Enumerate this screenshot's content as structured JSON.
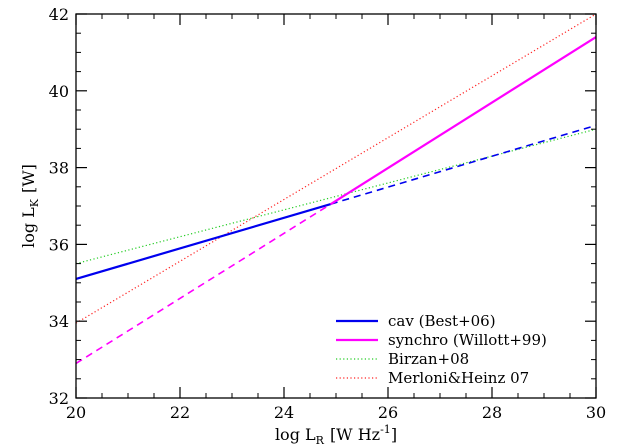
{
  "chart_data": {
    "type": "line",
    "xlabel": {
      "main": "log L",
      "sub": "R",
      "unit": "[W Hz",
      "exp": "-1",
      "close": "]"
    },
    "ylabel": {
      "main": "log L",
      "sub": "K",
      "unit": "[W]"
    },
    "xlim": [
      20,
      30
    ],
    "ylim": [
      32,
      42
    ],
    "x_ticks": [
      20,
      22,
      24,
      26,
      28,
      30
    ],
    "y_ticks": [
      32,
      34,
      36,
      38,
      40,
      42
    ],
    "x_tick_labels": [
      "20",
      "22",
      "24",
      "26",
      "28",
      "30"
    ],
    "y_tick_labels": [
      "32",
      "34",
      "36",
      "38",
      "40",
      "42"
    ],
    "grid": false,
    "legend_position": "bottom-right",
    "series": [
      {
        "name": "cav (Best+06)",
        "color": "#0000ee",
        "style": "solid-then-dashed",
        "solid": {
          "x": [
            20,
            24.9
          ],
          "y": [
            35.1,
            37.05
          ]
        },
        "dashed": {
          "x": [
            24.9,
            30
          ],
          "y": [
            37.05,
            39.1
          ]
        }
      },
      {
        "name": "synchro (Willott+99)",
        "color": "#ff00ff",
        "style": "dashed-then-solid",
        "dashed": {
          "x": [
            20,
            24.9
          ],
          "y": [
            32.9,
            37.05
          ]
        },
        "solid": {
          "x": [
            24.9,
            30
          ],
          "y": [
            37.05,
            41.4
          ]
        }
      },
      {
        "name": "Birzan+08",
        "color": "#22cc22",
        "style": "dotted",
        "line": {
          "x": [
            20,
            30
          ],
          "y": [
            35.5,
            39.0
          ]
        }
      },
      {
        "name": "Merloni&Heinz 07",
        "color": "#ff2222",
        "style": "dotted",
        "line": {
          "x": [
            20,
            30
          ],
          "y": [
            33.95,
            42.0
          ]
        }
      }
    ]
  }
}
